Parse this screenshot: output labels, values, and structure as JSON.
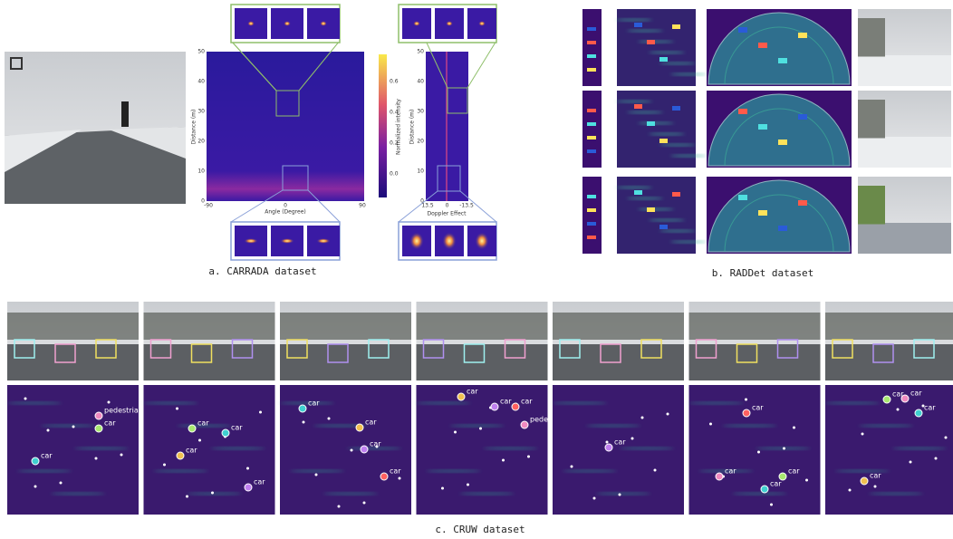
{
  "carrada": {
    "caption": "a. CARRADA dataset",
    "range_angle": {
      "x_label": "Angle (Degree)",
      "y_label": "Distance (m)",
      "x_ticks": [
        "-90",
        "0",
        "90"
      ],
      "y_ticks": [
        "50",
        "40",
        "30",
        "20",
        "10",
        "0"
      ]
    },
    "colorbar": {
      "label": "Normalized intensity",
      "ticks": [
        "0.6",
        "0.4",
        "0.2",
        "0.0"
      ]
    },
    "range_doppler": {
      "x_label": "Doppler Effect",
      "y_label": "Distance (m)",
      "x_ticks": [
        "13.5",
        "0",
        "-13.5"
      ],
      "y_ticks": [
        "50",
        "40",
        "30",
        "20",
        "10",
        "0"
      ]
    }
  },
  "raddet": {
    "caption": "b. RADDet dataset"
  },
  "cruw": {
    "caption": "c. CRUW dataset",
    "panels": [
      {
        "labels": [
          "pedestrian",
          "car",
          "car"
        ]
      },
      {
        "labels": [
          "car",
          "car",
          "car",
          "car"
        ]
      },
      {
        "labels": [
          "car",
          "car",
          "car",
          "car"
        ]
      },
      {
        "labels": [
          "car",
          "car",
          "car",
          "pedestrian"
        ]
      },
      {
        "labels": [
          "car"
        ]
      },
      {
        "labels": [
          "car",
          "car",
          "car",
          "car"
        ]
      },
      {
        "labels": [
          "car",
          "car",
          "car",
          "car"
        ]
      }
    ]
  }
}
